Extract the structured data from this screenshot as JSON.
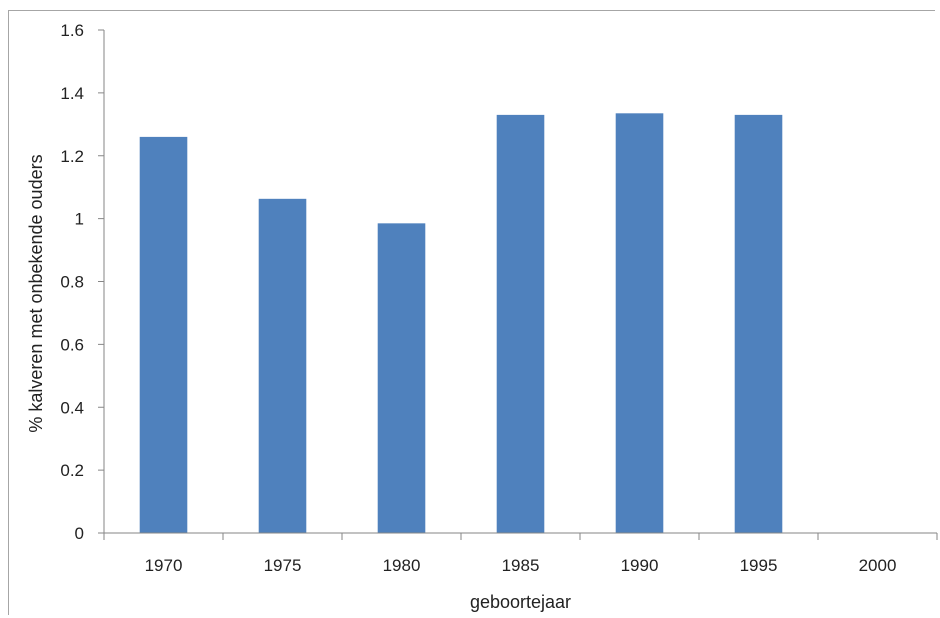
{
  "chart_data": {
    "type": "bar",
    "title": "",
    "xlabel": "geboortejaar",
    "ylabel": "% kalveren met onbekende ouders",
    "categories": [
      "1970",
      "1975",
      "1980",
      "1985",
      "1990",
      "1995",
      "2000"
    ],
    "values": [
      1.26,
      1.063,
      0.985,
      1.33,
      1.335,
      1.33,
      0
    ],
    "ylim": [
      0,
      1.6
    ],
    "yticks": [
      "0",
      "0.2",
      "0.4",
      "0.6",
      "0.8",
      "1",
      "1.2",
      "1.4",
      "1.6"
    ],
    "grid": false,
    "legend": "none",
    "bar_color": "#4f81bd",
    "axis_color": "#868686"
  }
}
